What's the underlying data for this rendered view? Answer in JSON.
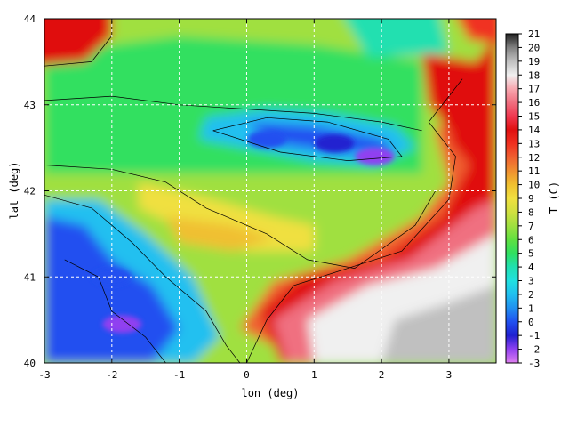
{
  "chart_data": {
    "type": "heatmap",
    "title": "",
    "xlabel": "lon (deg)",
    "ylabel": "lat (deg)",
    "xlim": [
      -3,
      3.7
    ],
    "ylim": [
      40,
      44
    ],
    "x_ticks": [
      "-3",
      "-2",
      "-1",
      "0",
      "1",
      "2",
      "3"
    ],
    "x_tick_values": [
      -3,
      -2,
      -1,
      0,
      1,
      2,
      3
    ],
    "y_ticks": [
      "40",
      "41",
      "42",
      "43",
      "44"
    ],
    "y_tick_values": [
      40,
      41,
      42,
      43,
      44
    ],
    "grid": true,
    "colorbar": {
      "label": "T (C)",
      "min": -3,
      "max": 21,
      "ticks": [
        "21",
        "20",
        "19",
        "18",
        "17",
        "16",
        "15",
        "14",
        "13",
        "12",
        "11",
        "10",
        "9",
        "8",
        "7",
        "6",
        "5",
        "4",
        "3",
        "2",
        "1",
        "0",
        "-1",
        "-2",
        "-3"
      ],
      "colors": [
        "#e080f0",
        "#9040f0",
        "#2020d0",
        "#2050f0",
        "#2090f0",
        "#20c0f0",
        "#20e0e0",
        "#20e0b0",
        "#30e060",
        "#60e040",
        "#a0e040",
        "#d0e040",
        "#f0e040",
        "#f0c030",
        "#f09030",
        "#f06030",
        "#f03020",
        "#e01010",
        "#f03850",
        "#f07080",
        "#f8a8b0",
        "#f0f0f0",
        "#c0c0c0",
        "#808080",
        "#202020"
      ]
    },
    "field": {
      "cold_highlands": [
        {
          "lon": 1.3,
          "lat": 42.55,
          "T": -1
        },
        {
          "lon": 0.3,
          "lat": 42.6,
          "T": 0
        },
        {
          "lon": 1.9,
          "lat": 42.4,
          "T": -2
        },
        {
          "lon": -2.0,
          "lat": 41.0,
          "T": 0
        },
        {
          "lon": -1.85,
          "lat": 40.45,
          "T": -2
        }
      ],
      "warm_regions": [
        {
          "name": "sea-south-east",
          "T": 18
        },
        {
          "name": "sea-north-west",
          "T": 14
        },
        {
          "name": "sea-north-east",
          "T": 14
        }
      ]
    }
  }
}
